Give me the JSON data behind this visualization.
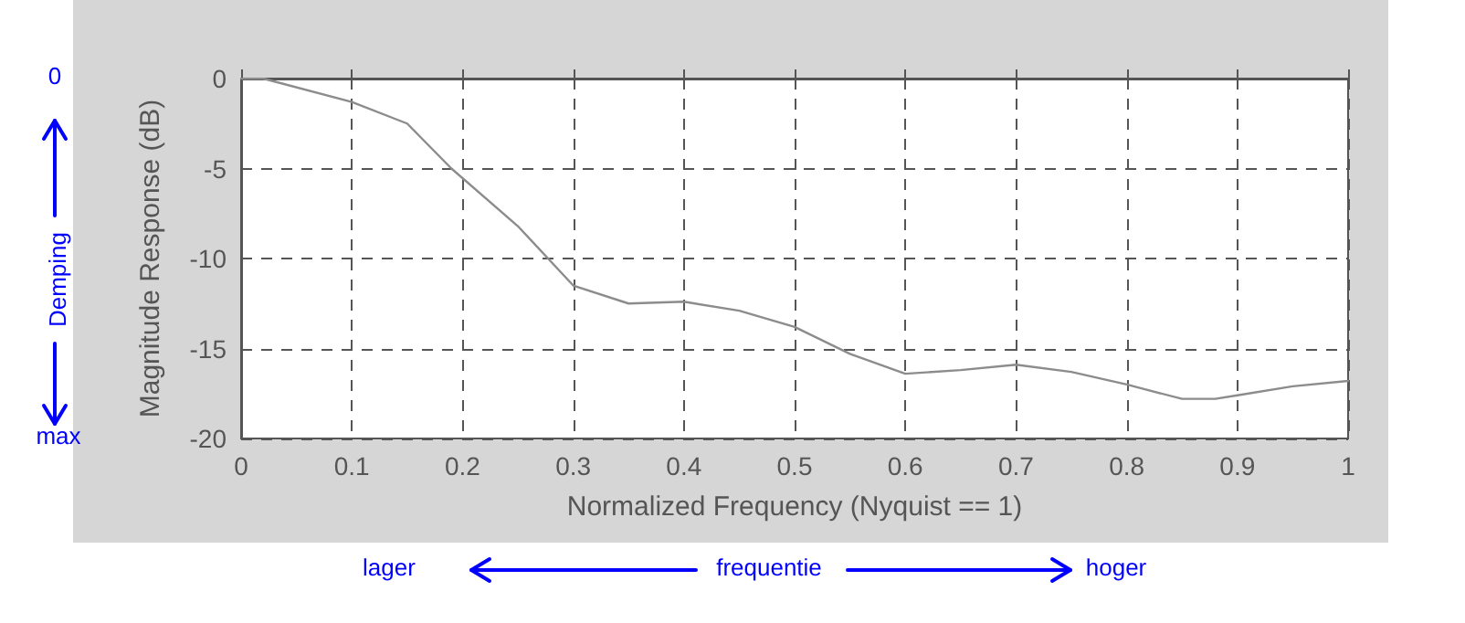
{
  "chart_data": {
    "type": "line",
    "xlabel": "Normalized Frequency (Nyquist == 1)",
    "ylabel": "Magnitude Response (dB)",
    "x": [
      0,
      0.02,
      0.1,
      0.15,
      0.19,
      0.25,
      0.3,
      0.35,
      0.4,
      0.45,
      0.5,
      0.55,
      0.6,
      0.65,
      0.7,
      0.75,
      0.8,
      0.85,
      0.88,
      0.9,
      0.95,
      1.0
    ],
    "series": [
      {
        "color": "#8c8c8c",
        "values": [
          0,
          0,
          -1.3,
          -2.5,
          -5,
          -8.2,
          -11.5,
          -12.5,
          -12.4,
          -12.9,
          -13.8,
          -15.3,
          -16.4,
          -16.2,
          -15.9,
          -16.3,
          -17,
          -17.8,
          -17.8,
          -17.6,
          -17.1,
          -16.8
        ]
      }
    ],
    "xlim": [
      0,
      1
    ],
    "xticks": [
      0,
      0.1,
      0.2,
      0.3,
      0.4,
      0.5,
      0.6,
      0.7,
      0.8,
      0.9,
      1
    ],
    "ylim": [
      -20,
      0
    ],
    "yticks": [
      -20,
      -15,
      -10,
      -5,
      0
    ],
    "grid": true,
    "marker": "none",
    "line_style": "solid",
    "annotations": [
      "0",
      "Demping",
      "max",
      "lager",
      "frequentie",
      "hoger"
    ]
  }
}
